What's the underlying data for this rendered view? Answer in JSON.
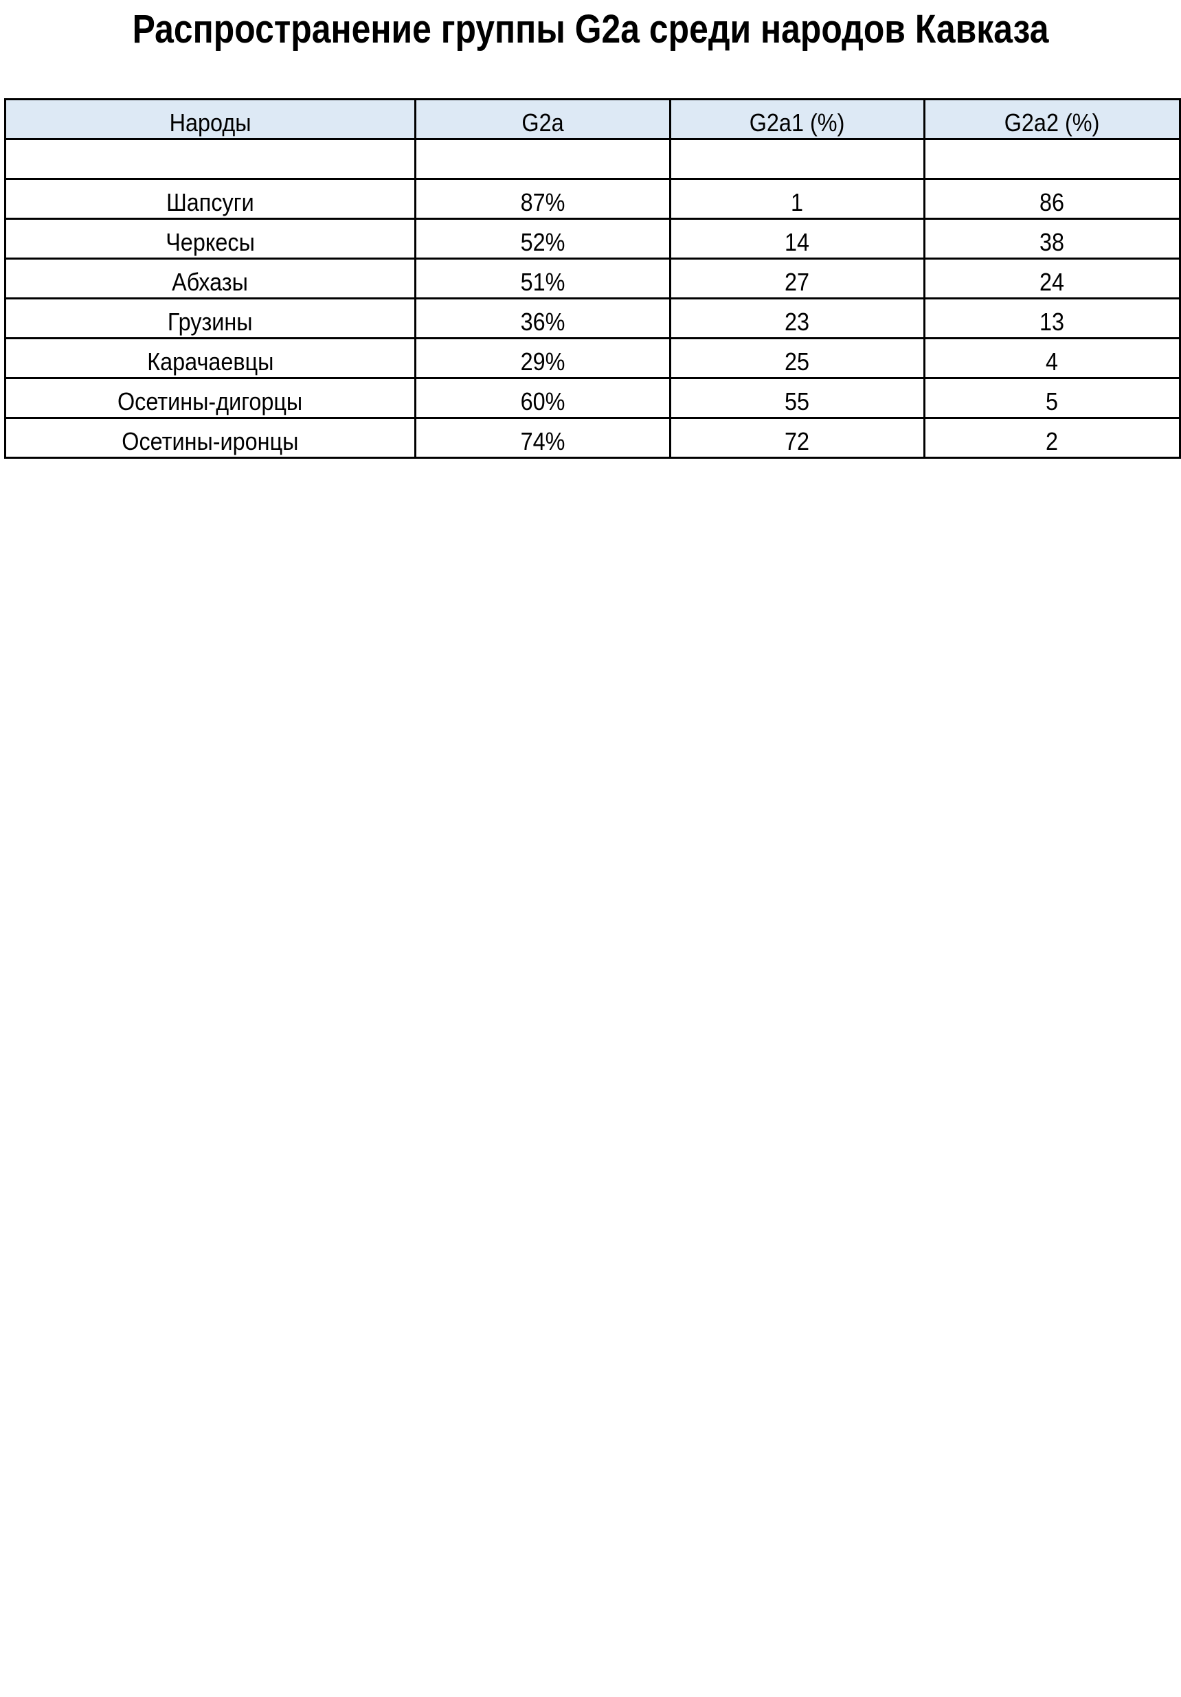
{
  "title": "Распространение группы G2a среди народов Кавказа",
  "table": {
    "headers": [
      "Народы",
      "G2a",
      "G2a1 (%)",
      "G2a2 (%)"
    ],
    "rows": [
      [
        "",
        "",
        "",
        ""
      ],
      [
        "Шапсуги",
        "87%",
        "1",
        "86"
      ],
      [
        "Черкесы",
        "52%",
        "14",
        "38"
      ],
      [
        "Абхазы",
        "51%",
        "27",
        "24"
      ],
      [
        "Грузины",
        "36%",
        "23",
        "13"
      ],
      [
        "Карачаевцы",
        "29%",
        "25",
        "4"
      ],
      [
        "Осетины-дигорцы",
        "60%",
        "55",
        "5"
      ],
      [
        "Осетины-иронцы",
        "74%",
        "72",
        "2"
      ]
    ],
    "header_bg": "#dde9f5"
  }
}
